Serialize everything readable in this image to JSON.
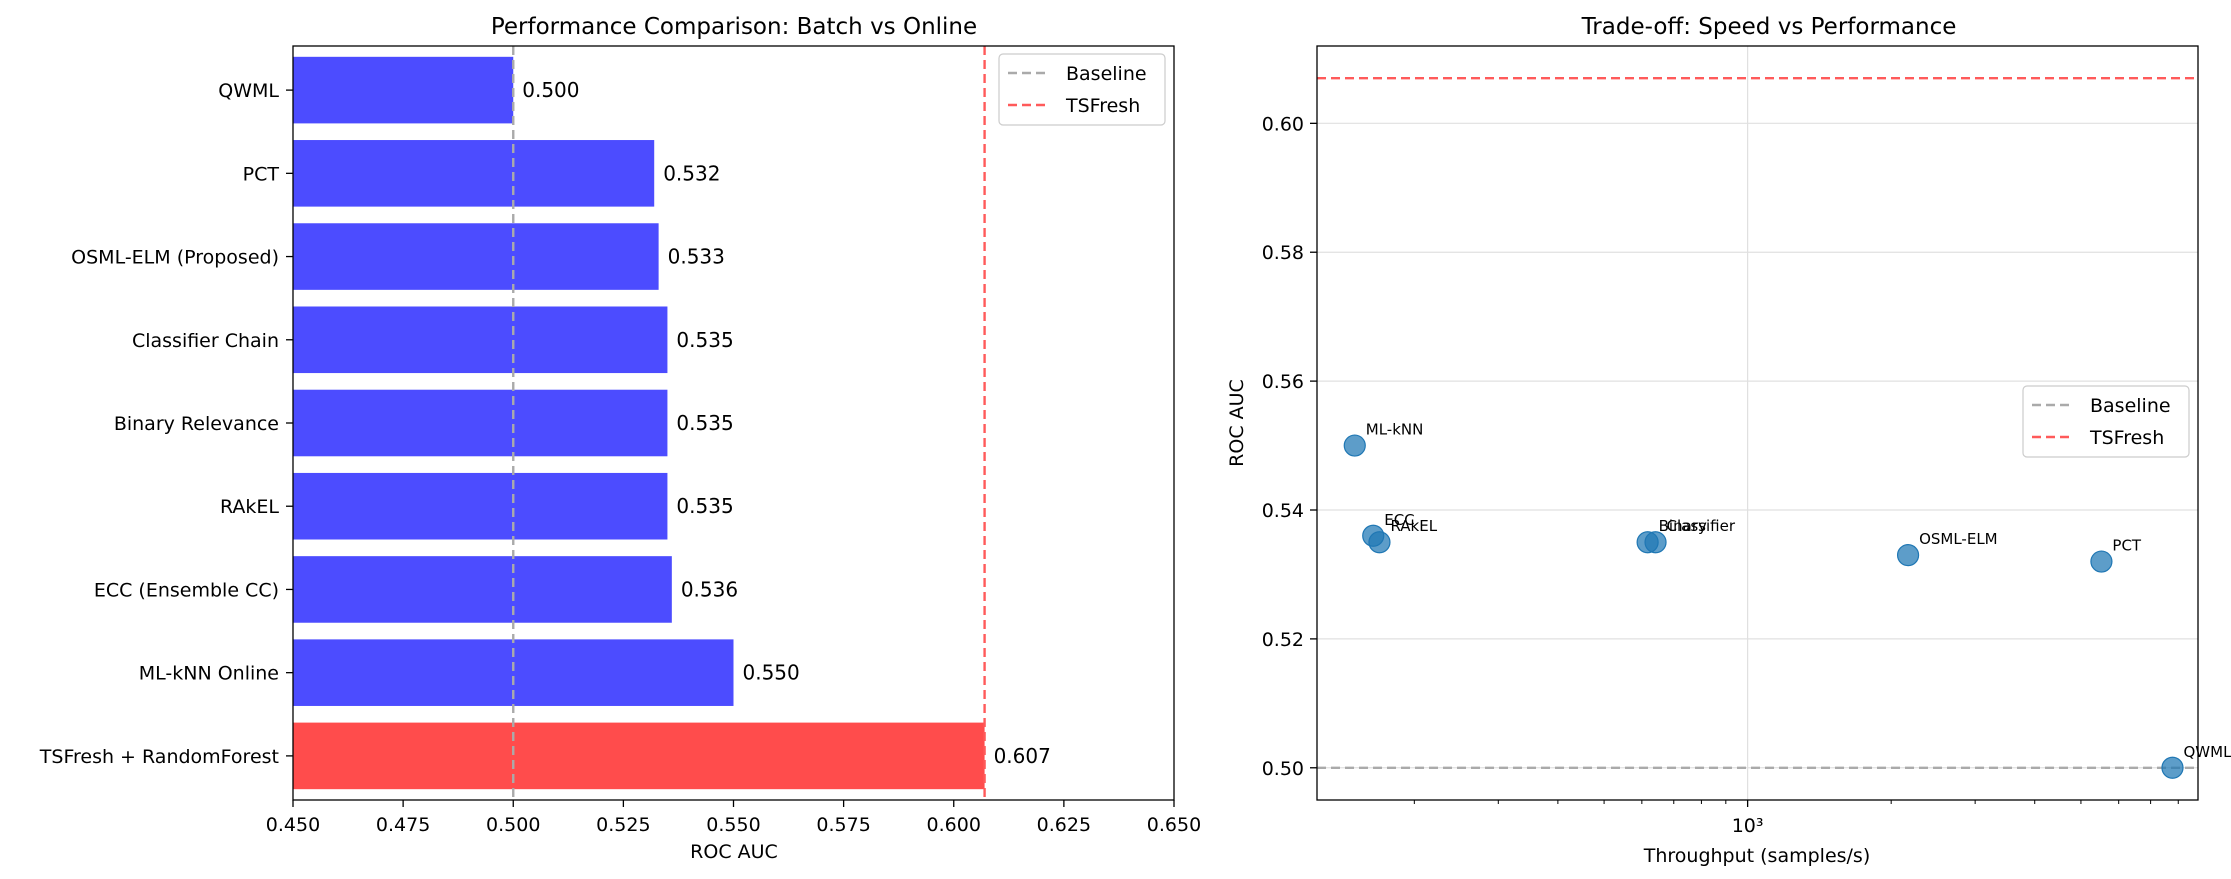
{
  "colors": {
    "batch": "#ff4c4c",
    "online": "#4c4cff",
    "scatter": "#1f77b4",
    "baseline": "#aaaaaa",
    "tsfresh": "#ff5a5a",
    "grid": "#e0e0e0"
  },
  "chart_data": [
    {
      "type": "bar",
      "orientation": "horizontal",
      "title": "Performance Comparison: Batch vs Online",
      "xlabel": "ROC AUC",
      "ylabel": "",
      "xlim": [
        0.45,
        0.65
      ],
      "xticks": [
        0.45,
        0.475,
        0.5,
        0.525,
        0.55,
        0.575,
        0.6,
        0.625,
        0.65
      ],
      "xtick_labels": [
        "0.450",
        "0.475",
        "0.500",
        "0.525",
        "0.550",
        "0.575",
        "0.600",
        "0.625",
        "0.650"
      ],
      "categories": [
        "QWML",
        "PCT",
        "OSML-ELM (Proposed)",
        "Classifier Chain",
        "Binary Relevance",
        "RAkEL",
        "ECC (Ensemble CC)",
        "ML-kNN Online",
        "TSFresh + RandomForest"
      ],
      "values": [
        0.5,
        0.532,
        0.533,
        0.535,
        0.535,
        0.535,
        0.536,
        0.55,
        0.607
      ],
      "value_labels": [
        "0.500",
        "0.532",
        "0.533",
        "0.535",
        "0.535",
        "0.535",
        "0.536",
        "0.550",
        "0.607"
      ],
      "groups": [
        "online",
        "online",
        "online",
        "online",
        "online",
        "online",
        "online",
        "online",
        "batch"
      ],
      "reference_lines": [
        {
          "name": "Baseline",
          "value": 0.5,
          "color_key": "baseline"
        },
        {
          "name": "TSFresh",
          "value": 0.607,
          "color_key": "tsfresh"
        }
      ],
      "legend": {
        "placement": "top-right",
        "entries": [
          "Baseline",
          "TSFresh"
        ]
      },
      "grid": false
    },
    {
      "type": "scatter",
      "title": "Trade-off: Speed vs Performance",
      "xlabel": "Throughput (samples/s)",
      "ylabel": "ROC AUC",
      "xscale": "log",
      "xlim": [
        125,
        8800
      ],
      "ylim": [
        0.495,
        0.612
      ],
      "yticks": [
        0.5,
        0.52,
        0.54,
        0.56,
        0.58,
        0.6
      ],
      "ytick_labels": [
        "0.50",
        "0.52",
        "0.54",
        "0.56",
        "0.58",
        "0.60"
      ],
      "xticks_major": [
        1000
      ],
      "xtick_labels": [
        "10³"
      ],
      "points": [
        {
          "label": "ML-kNN",
          "x": 150,
          "y": 0.55
        },
        {
          "label": "ECC",
          "x": 164,
          "y": 0.536
        },
        {
          "label": "RAkEL",
          "x": 169,
          "y": 0.535
        },
        {
          "label": "Binary",
          "x": 617,
          "y": 0.535
        },
        {
          "label": "Classifier",
          "x": 641,
          "y": 0.535
        },
        {
          "label": "OSML-ELM",
          "x": 2170,
          "y": 0.533
        },
        {
          "label": "PCT",
          "x": 5520,
          "y": 0.532
        },
        {
          "label": "QWML",
          "x": 7780,
          "y": 0.5
        }
      ],
      "reference_lines": [
        {
          "name": "Baseline",
          "value": 0.5,
          "color_key": "baseline"
        },
        {
          "name": "TSFresh",
          "value": 0.607,
          "color_key": "tsfresh"
        }
      ],
      "legend": {
        "placement": "center-right",
        "entries": [
          "Baseline",
          "TSFresh"
        ]
      },
      "grid": true
    }
  ]
}
